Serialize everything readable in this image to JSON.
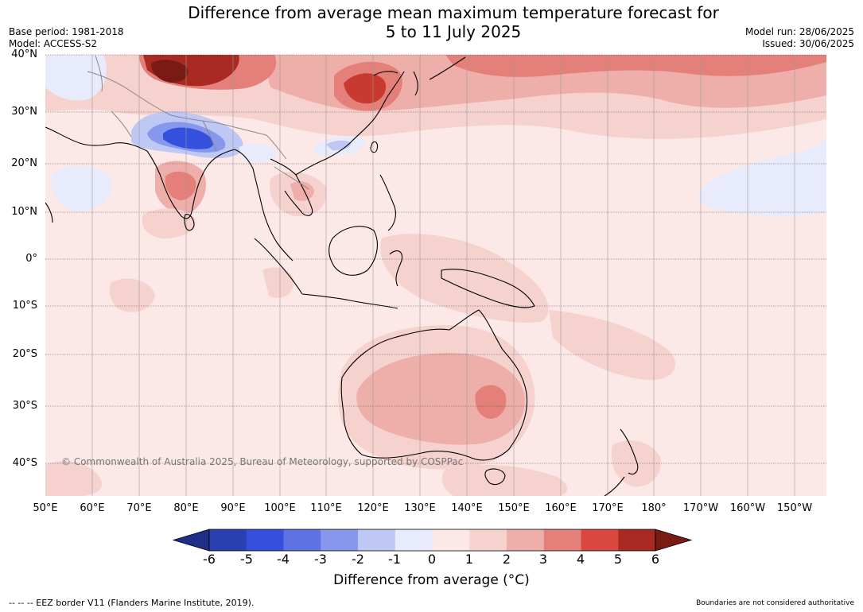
{
  "title": {
    "line1": "Difference from average mean maximum temperature forecast for",
    "line2": "5 to 11 July 2025"
  },
  "meta_left": {
    "base_period": "Base period: 1981-2018",
    "model": "Model: ACCESS-S2"
  },
  "meta_right": {
    "model_run": "Model run: 28/06/2025",
    "issued": "Issued: 30/06/2025"
  },
  "map": {
    "lat_labels": [
      "40°N",
      "30°N",
      "20°N",
      "10°N",
      "0°",
      "10°S",
      "20°S",
      "30°S",
      "40°S"
    ],
    "lon_labels": [
      "50°E",
      "60°E",
      "70°E",
      "80°E",
      "90°E",
      "100°E",
      "110°E",
      "120°E",
      "130°E",
      "140°E",
      "150°E",
      "160°E",
      "170°E",
      "180°",
      "170°W",
      "160°W",
      "150°W"
    ],
    "copyright": "© Commonwealth of Australia 2025, Bureau of Meteorology, supported by COSPPac",
    "background_color": "#fce9e7"
  },
  "colorbar": {
    "ticks": [
      "-6",
      "-5",
      "-4",
      "-3",
      "-2",
      "-1",
      "0",
      "1",
      "2",
      "3",
      "4",
      "5",
      "6"
    ],
    "colors": [
      "#1d2f86",
      "#2a3fb0",
      "#3650de",
      "#5e72e3",
      "#8797ec",
      "#bfc7f5",
      "#e8ebfb",
      "#fce9e7",
      "#f6d2cf",
      "#eeaeaa",
      "#e48079",
      "#d8483e",
      "#a82a22",
      "#7a1a14"
    ],
    "label": "Difference from average (°C)"
  },
  "footer": {
    "left": "--  --  -- EEZ border V11 (Flanders Marine Institute, 2019).",
    "right": "Boundaries are not considered authoritative"
  }
}
